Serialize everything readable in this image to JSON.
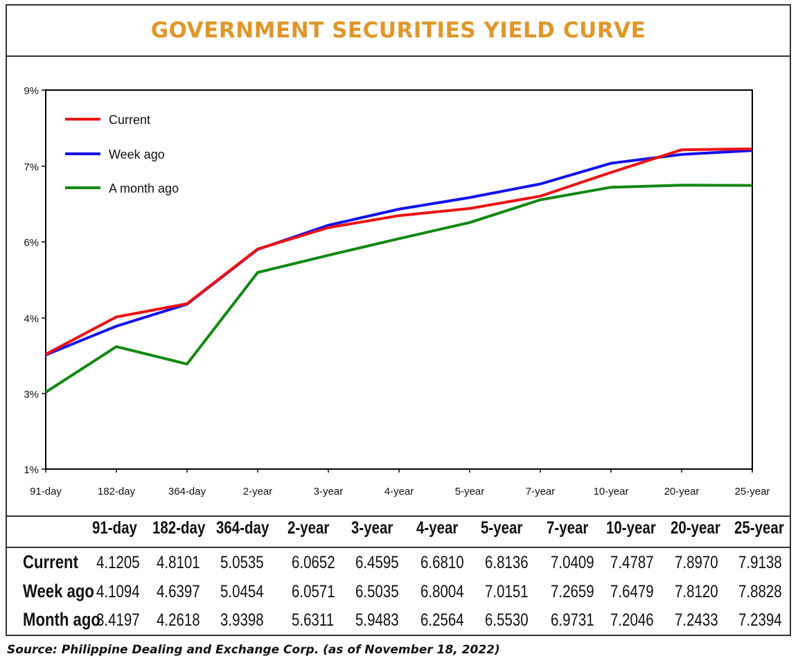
{
  "title": "GOVERNMENT SECURITIES YIELD CURVE",
  "chart_data": {
    "type": "line",
    "title": "GOVERNMENT SECURITIES YIELD CURVE",
    "categories": [
      "91-day",
      "182-day",
      "364-day",
      "2-year",
      "3-year",
      "4-year",
      "5-year",
      "7-year",
      "10-year",
      "20-year",
      "25-year"
    ],
    "y_tick_labels": [
      "1%",
      "3%",
      "4%",
      "6%",
      "7%",
      "9%"
    ],
    "ylim": [
      2,
      9
    ],
    "grid": false,
    "legend_position": "top-left",
    "series": [
      {
        "name": "Current",
        "color": "#ee1111",
        "values": [
          4.1205,
          4.8101,
          5.0535,
          6.0652,
          6.4595,
          6.681,
          6.8136,
          7.0409,
          7.4787,
          7.897,
          7.9138
        ]
      },
      {
        "name": "Week ago",
        "color": "#1111ee",
        "values": [
          4.1094,
          4.6397,
          5.0454,
          6.0571,
          6.5035,
          6.8004,
          7.0151,
          7.2659,
          7.6479,
          7.812,
          7.8828
        ]
      },
      {
        "name": "A month ago",
        "color": "#118811",
        "values": [
          3.4197,
          4.2618,
          3.9398,
          5.6311,
          5.9483,
          6.2564,
          6.553,
          6.9731,
          7.2046,
          7.2433,
          7.2394
        ]
      }
    ]
  },
  "table": {
    "headers": [
      "91-day",
      "182-day",
      "364-day",
      "2-year",
      "3-year",
      "4-year",
      "5-year",
      "7-year",
      "10-year",
      "20-year",
      "25-year"
    ],
    "rows": [
      {
        "label": "Current",
        "values": [
          "4.1205",
          "4.8101",
          "5.0535",
          "6.0652",
          "6.4595",
          "6.6810",
          "6.8136",
          "7.0409",
          "7.4787",
          "7.8970",
          "7.9138"
        ]
      },
      {
        "label": "Week ago",
        "values": [
          "4.1094",
          "4.6397",
          "5.0454",
          "6.0571",
          "6.5035",
          "6.8004",
          "7.0151",
          "7.2659",
          "7.6479",
          "7.8120",
          "7.8828"
        ]
      },
      {
        "label": "Month ago",
        "values": [
          "3.4197",
          "4.2618",
          "3.9398",
          "5.6311",
          "5.9483",
          "6.2564",
          "6.5530",
          "6.9731",
          "7.2046",
          "7.2433",
          "7.2394"
        ]
      }
    ]
  },
  "source": "Source: Philippine Dealing and Exchange Corp. (as of November 18, 2022)"
}
